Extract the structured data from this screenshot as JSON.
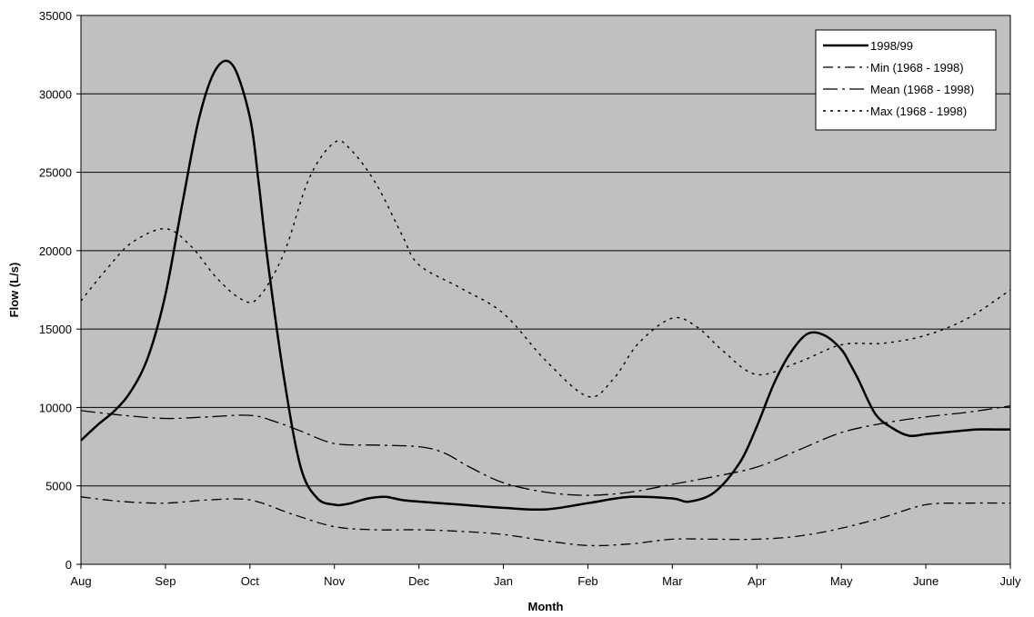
{
  "chart_data": {
    "type": "line",
    "title": "",
    "xlabel": "Month",
    "ylabel": "Flow (L/s)",
    "categories": [
      "Aug",
      "Sep",
      "Oct",
      "Nov",
      "Dec",
      "Jan",
      "Feb",
      "Mar",
      "Apr",
      "May",
      "June",
      "July"
    ],
    "x_range": [
      0,
      11
    ],
    "ylim": [
      0,
      35000
    ],
    "yticks": [
      0,
      5000,
      10000,
      15000,
      20000,
      25000,
      30000,
      35000
    ],
    "grid": true,
    "legend_position": "top-right",
    "colors": {
      "plot_background": "#c0c0c0",
      "line": "#000000",
      "grid": "#000000"
    },
    "series": [
      {
        "name": "1998/99",
        "style": "solid",
        "x": [
          0,
          0.2,
          0.4,
          0.6,
          0.8,
          1.0,
          1.2,
          1.4,
          1.6,
          1.8,
          2.0,
          2.1,
          2.2,
          2.4,
          2.6,
          2.8,
          3.0,
          3.1,
          3.2,
          3.4,
          3.6,
          3.8,
          4.0,
          4.5,
          5.0,
          5.5,
          6.0,
          6.5,
          7.0,
          7.2,
          7.5,
          7.8,
          8.0,
          8.2,
          8.4,
          8.6,
          8.8,
          9.0,
          9.1,
          9.2,
          9.4,
          9.6,
          9.8,
          10.0,
          10.2,
          10.4,
          10.6,
          10.8,
          11.0
        ],
        "y": [
          7900,
          8900,
          9800,
          11100,
          13300,
          17200,
          23000,
          28500,
          31600,
          31800,
          28500,
          24500,
          19800,
          12000,
          6200,
          4200,
          3800,
          3800,
          3900,
          4200,
          4300,
          4100,
          4000,
          3800,
          3600,
          3500,
          3900,
          4300,
          4200,
          4000,
          4600,
          6500,
          8800,
          11500,
          13500,
          14700,
          14600,
          13700,
          12800,
          11800,
          9600,
          8700,
          8200,
          8300,
          8400,
          8500,
          8600,
          8600,
          8600
        ]
      },
      {
        "name": "Min (1968 - 1998)",
        "style": "dash-dot",
        "x": [
          0,
          0.5,
          1.0,
          1.5,
          2.0,
          2.5,
          3.0,
          3.5,
          4.0,
          4.5,
          5.0,
          5.5,
          6.0,
          6.5,
          7.0,
          7.5,
          8.0,
          8.5,
          9.0,
          9.5,
          10.0,
          10.5,
          11.0
        ],
        "y": [
          4300,
          4000,
          3900,
          4100,
          4100,
          3200,
          2400,
          2200,
          2200,
          2100,
          1900,
          1500,
          1200,
          1300,
          1600,
          1600,
          1600,
          1800,
          2300,
          3000,
          3800,
          3900,
          3900
        ]
      },
      {
        "name": "Mean (1968 - 1998)",
        "style": "long-dash-dot",
        "x": [
          0,
          0.5,
          1.0,
          1.5,
          2.0,
          2.3,
          2.6,
          3.0,
          3.5,
          4.0,
          4.3,
          4.6,
          5.0,
          5.5,
          6.0,
          6.5,
          7.0,
          7.5,
          8.0,
          8.5,
          9.0,
          9.5,
          10.0,
          10.5,
          11.0
        ],
        "y": [
          9800,
          9500,
          9300,
          9400,
          9500,
          9100,
          8500,
          7700,
          7600,
          7500,
          7100,
          6200,
          5200,
          4600,
          4400,
          4600,
          5100,
          5600,
          6200,
          7300,
          8400,
          9000,
          9400,
          9700,
          10100
        ]
      },
      {
        "name": "Max (1968 - 1998)",
        "style": "dotted",
        "x": [
          0,
          0.3,
          0.6,
          1.0,
          1.3,
          1.6,
          1.9,
          2.1,
          2.4,
          2.7,
          3.0,
          3.2,
          3.5,
          3.8,
          4.0,
          4.5,
          5.0,
          5.5,
          6.0,
          6.3,
          6.6,
          7.0,
          7.3,
          7.6,
          8.0,
          8.5,
          9.0,
          9.5,
          10.0,
          10.5,
          11.0
        ],
        "y": [
          16800,
          18800,
          20500,
          21400,
          20300,
          18300,
          16900,
          17000,
          19800,
          24600,
          26900,
          26400,
          24200,
          21000,
          19100,
          17600,
          16000,
          13000,
          10700,
          11800,
          14100,
          15700,
          15100,
          13600,
          12100,
          12900,
          14000,
          14100,
          14600,
          15700,
          17500
        ]
      }
    ]
  }
}
